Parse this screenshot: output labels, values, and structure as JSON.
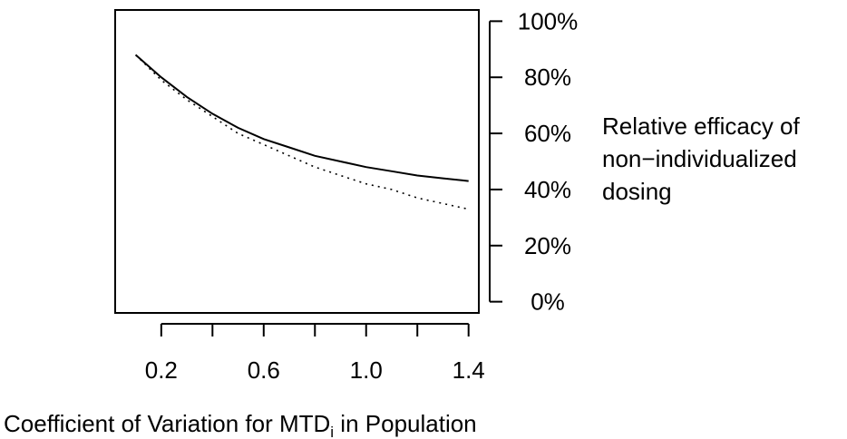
{
  "chart_data": {
    "type": "line",
    "xlabel_main": "Coefficient of Variation for MTD",
    "xlabel_sub": "i",
    "xlabel_tail": " in Population",
    "ylabel_lines": [
      "Relative efficacy of",
      "non−individualized",
      "dosing"
    ],
    "xlim": [
      0.02,
      1.44
    ],
    "ylim": [
      -0.04,
      1.04
    ],
    "x_ticks": [
      0.2,
      0.4,
      0.6,
      0.8,
      1.0,
      1.2,
      1.4
    ],
    "x_tick_labels": [
      "0.2",
      "",
      "0.6",
      "",
      "1.0",
      "",
      "1.4"
    ],
    "y_ticks": [
      0,
      0.2,
      0.4,
      0.6,
      0.8,
      1.0
    ],
    "y_tick_labels": [
      "0%",
      "20%",
      "40%",
      "60%",
      "80%",
      "100%"
    ],
    "y_axis_side": "right",
    "grid": false,
    "series": [
      {
        "style": "solid",
        "x": [
          0.1,
          0.2,
          0.3,
          0.4,
          0.5,
          0.6,
          0.7,
          0.8,
          0.9,
          1.0,
          1.1,
          1.2,
          1.3,
          1.4
        ],
        "y": [
          0.88,
          0.8,
          0.73,
          0.67,
          0.62,
          0.58,
          0.55,
          0.52,
          0.5,
          0.48,
          0.465,
          0.45,
          0.44,
          0.43
        ]
      },
      {
        "style": "dotted",
        "x": [
          0.1,
          0.2,
          0.3,
          0.4,
          0.5,
          0.6,
          0.7,
          0.8,
          0.9,
          1.0,
          1.1,
          1.2,
          1.3,
          1.4
        ],
        "y": [
          0.88,
          0.79,
          0.72,
          0.66,
          0.6,
          0.56,
          0.52,
          0.48,
          0.45,
          0.42,
          0.4,
          0.37,
          0.35,
          0.33
        ]
      }
    ]
  }
}
